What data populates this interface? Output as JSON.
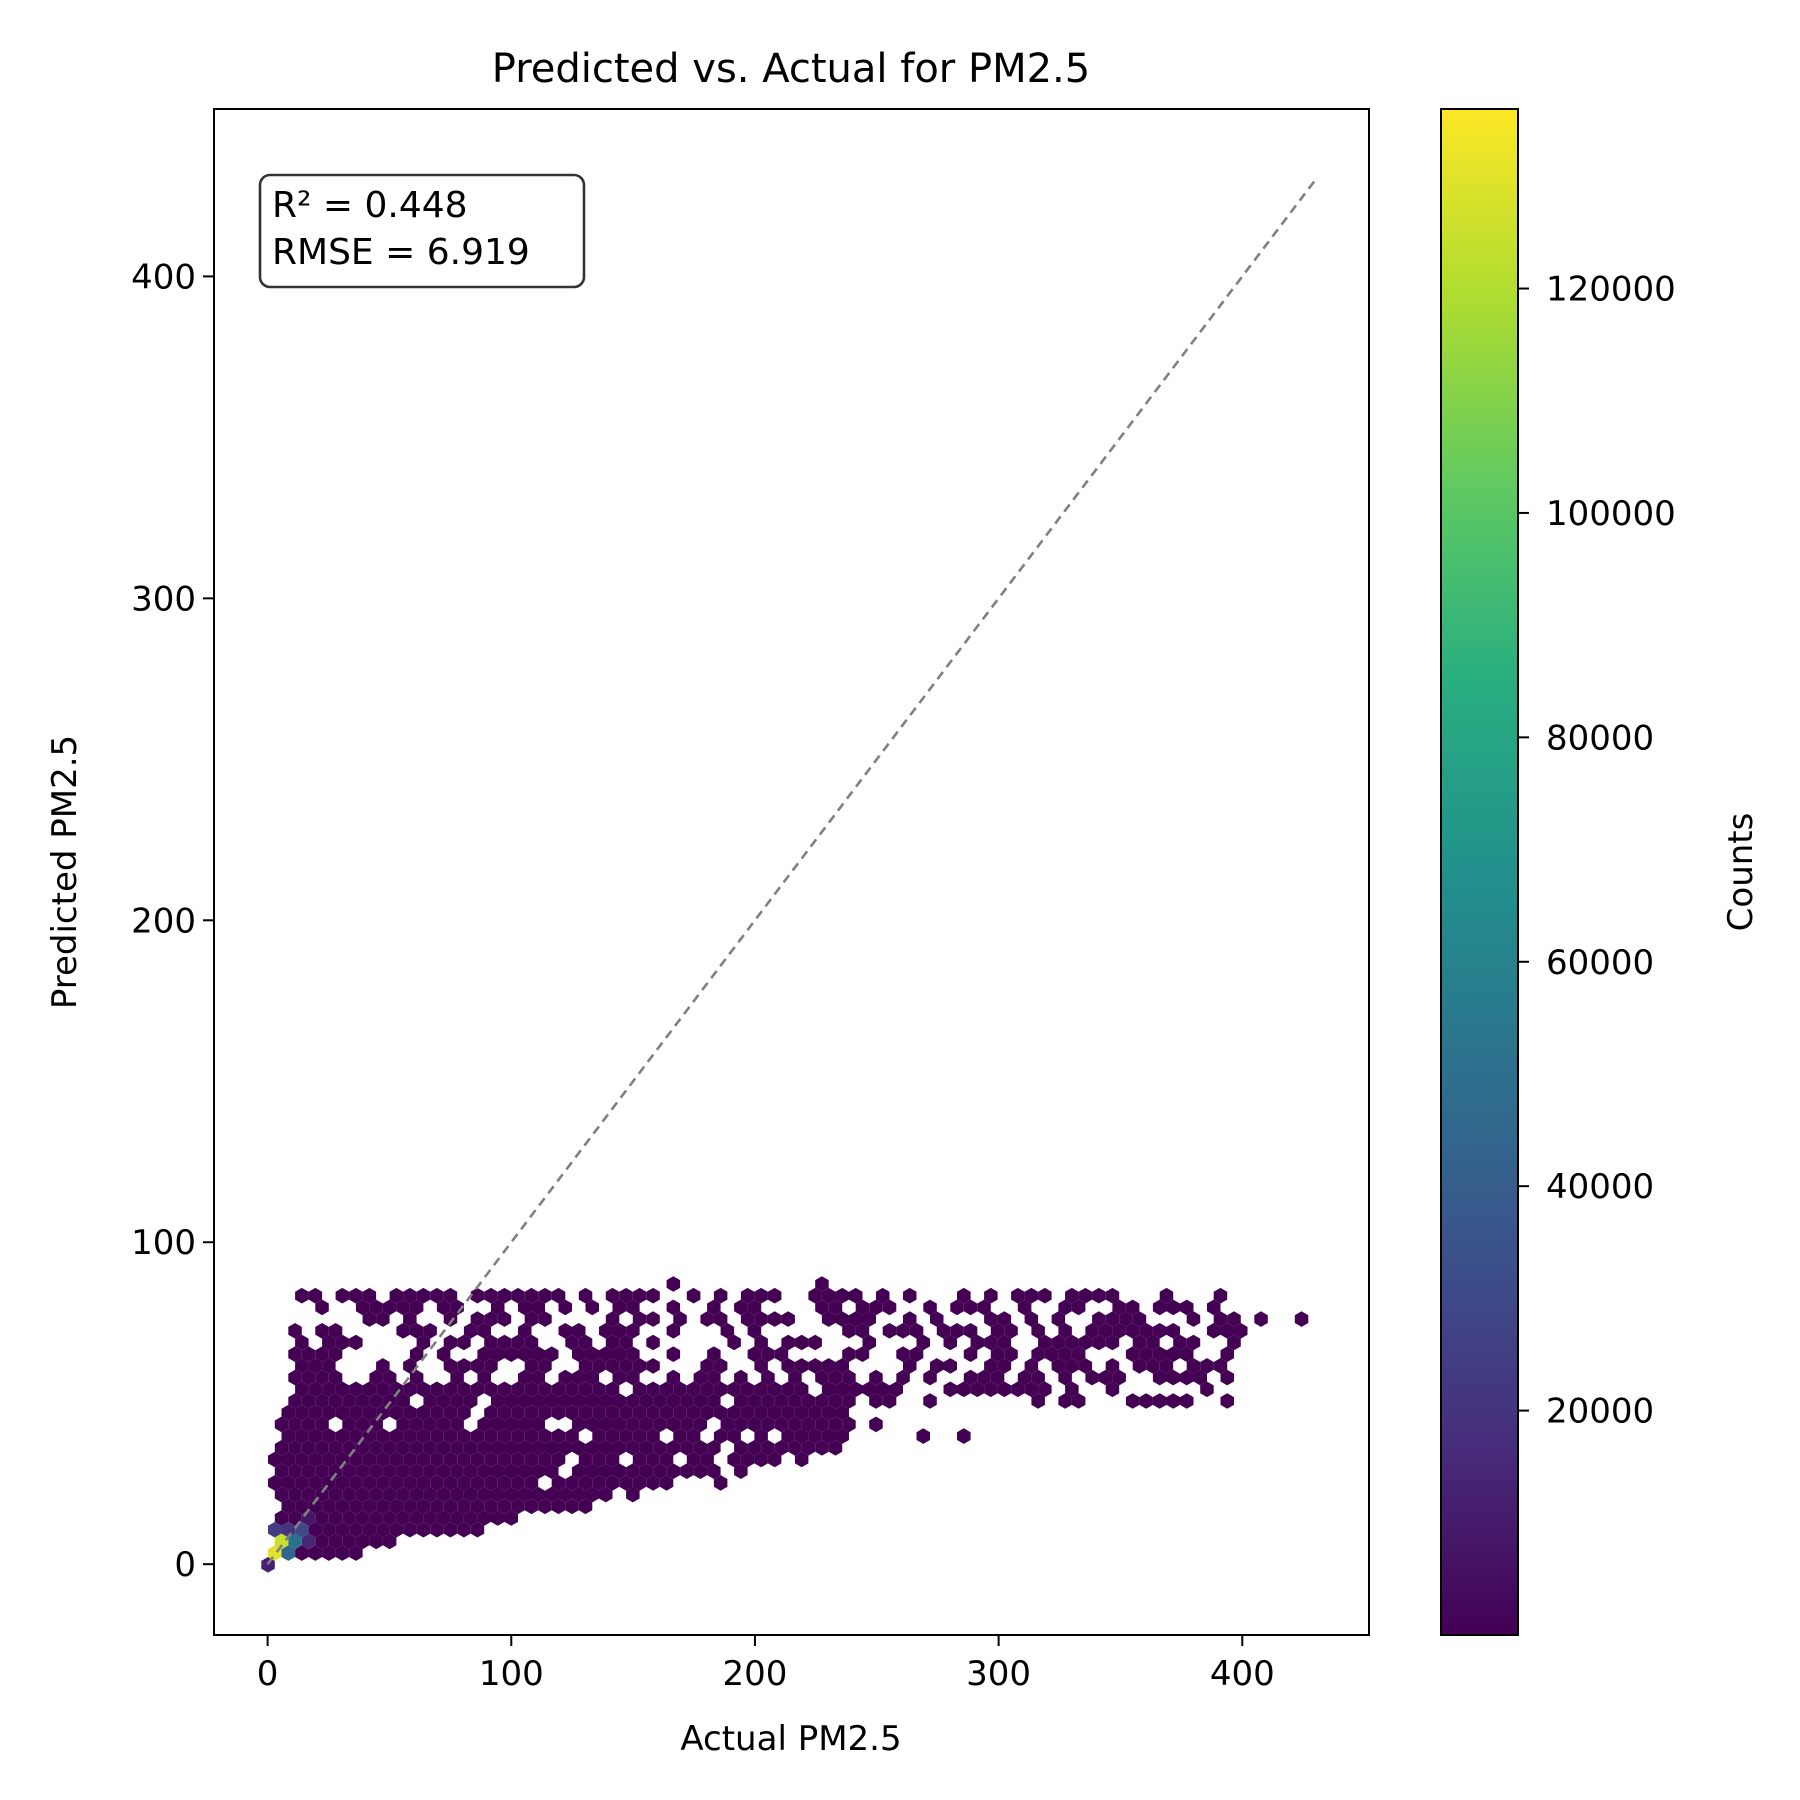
{
  "chart_data": {
    "type": "hexbin",
    "title": "Predicted vs. Actual for PM2.5",
    "xlabel": "Actual PM2.5",
    "ylabel": "Predicted PM2.5",
    "xlim": [
      -22,
      452
    ],
    "ylim": [
      -22,
      452
    ],
    "xticks": [
      0,
      100,
      200,
      300,
      400
    ],
    "yticks": [
      0,
      100,
      200,
      300,
      400
    ],
    "reference_line": {
      "style": "dashed",
      "color": "#808080",
      "from": [
        0,
        0
      ],
      "to": [
        430,
        430
      ]
    },
    "annotation": [
      "R² = 0.448",
      "RMSE = 6.919"
    ],
    "colorbar": {
      "label": "Counts",
      "colormap": "viridis",
      "range": [
        0,
        136000
      ],
      "ticks": [
        20000,
        40000,
        60000,
        80000,
        100000,
        120000
      ]
    },
    "dense_regions": [
      {
        "x_range": [
          5,
          240
        ],
        "y_range": [
          2,
          55
        ],
        "count_approx": 1,
        "density": "filled"
      },
      {
        "x_range": [
          5,
          110
        ],
        "y_range": [
          2,
          40
        ],
        "count_approx": 1,
        "density": "filled"
      },
      {
        "x_range": [
          10,
          400
        ],
        "y_range": [
          50,
          85
        ],
        "count_approx": 1,
        "density": "sparse"
      }
    ],
    "points": [
      {
        "x": 3,
        "y": 5,
        "count": 130000
      },
      {
        "x": 6,
        "y": 6,
        "count": 125000
      },
      {
        "x": 4,
        "y": 8,
        "count": 70000
      },
      {
        "x": 9,
        "y": 8,
        "count": 50000
      },
      {
        "x": 1,
        "y": 4,
        "count": 60000
      },
      {
        "x": 8,
        "y": 4,
        "count": 45000
      },
      {
        "x": 12,
        "y": 10,
        "count": 30000
      },
      {
        "x": 5,
        "y": 11,
        "count": 25000
      },
      {
        "x": 15,
        "y": 7,
        "count": 15000
      },
      {
        "x": 11,
        "y": 12,
        "count": 20000
      },
      {
        "x": 2,
        "y": 1,
        "count": 12000
      },
      {
        "x": 17,
        "y": 13,
        "count": 8000
      },
      {
        "x": 260,
        "y": 55,
        "count": 1
      },
      {
        "x": 230,
        "y": 50,
        "count": 1
      },
      {
        "x": 215,
        "y": 48,
        "count": 1
      },
      {
        "x": 235,
        "y": 40,
        "count": 1
      },
      {
        "x": 250,
        "y": 42,
        "count": 1
      },
      {
        "x": 270,
        "y": 38,
        "count": 1
      },
      {
        "x": 285,
        "y": 40,
        "count": 1
      },
      {
        "x": 300,
        "y": 58,
        "count": 1
      },
      {
        "x": 280,
        "y": 63,
        "count": 1
      },
      {
        "x": 300,
        "y": 68,
        "count": 1
      },
      {
        "x": 330,
        "y": 68,
        "count": 1
      },
      {
        "x": 345,
        "y": 68,
        "count": 1
      },
      {
        "x": 360,
        "y": 72,
        "count": 1
      },
      {
        "x": 380,
        "y": 70,
        "count": 1
      },
      {
        "x": 400,
        "y": 73,
        "count": 1
      },
      {
        "x": 410,
        "y": 75,
        "count": 1
      },
      {
        "x": 425,
        "y": 77,
        "count": 1
      },
      {
        "x": 375,
        "y": 80,
        "count": 1
      },
      {
        "x": 390,
        "y": 77,
        "count": 1
      },
      {
        "x": 320,
        "y": 85,
        "count": 1
      },
      {
        "x": 340,
        "y": 82,
        "count": 1
      },
      {
        "x": 350,
        "y": 77,
        "count": 1
      },
      {
        "x": 365,
        "y": 78,
        "count": 1
      },
      {
        "x": 325,
        "y": 60,
        "count": 1
      },
      {
        "x": 345,
        "y": 60,
        "count": 1
      },
      {
        "x": 360,
        "y": 62,
        "count": 1
      },
      {
        "x": 375,
        "y": 67,
        "count": 1
      },
      {
        "x": 305,
        "y": 76,
        "count": 1
      },
      {
        "x": 270,
        "y": 80,
        "count": 1
      },
      {
        "x": 285,
        "y": 74,
        "count": 1
      },
      {
        "x": 165,
        "y": 88,
        "count": 1
      },
      {
        "x": 230,
        "y": 88,
        "count": 1
      },
      {
        "x": 185,
        "y": 27,
        "count": 1
      },
      {
        "x": 170,
        "y": 30,
        "count": 1
      },
      {
        "x": 195,
        "y": 36,
        "count": 1
      },
      {
        "x": 210,
        "y": 34,
        "count": 1
      },
      {
        "x": 150,
        "y": 22,
        "count": 1
      },
      {
        "x": 160,
        "y": 26,
        "count": 1
      },
      {
        "x": 130,
        "y": 18,
        "count": 1
      },
      {
        "x": 140,
        "y": 20,
        "count": 1
      },
      {
        "x": 85,
        "y": 12,
        "count": 1
      },
      {
        "x": 70,
        "y": 10,
        "count": 1
      }
    ]
  }
}
